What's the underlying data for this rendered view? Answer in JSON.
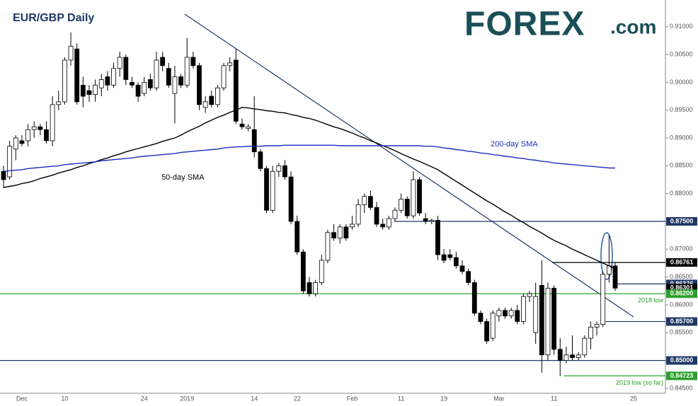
{
  "chart_data": {
    "type": "candlestick",
    "title": "EUR/GBP Daily",
    "logo": {
      "brand": "FOREX",
      "suffix": ".com"
    },
    "categories": [
      null,
      null,
      null,
      "Dec",
      null,
      null,
      null,
      null,
      null,
      null,
      "10",
      null,
      null,
      null,
      null,
      null,
      null,
      null,
      null,
      null,
      null,
      null,
      null,
      "24",
      null,
      null,
      null,
      null,
      null,
      null,
      "2019",
      null,
      null,
      null,
      null,
      null,
      null,
      null,
      null,
      null,
      null,
      "14",
      null,
      null,
      null,
      null,
      null,
      null,
      "22",
      null,
      null,
      null,
      null,
      null,
      null,
      null,
      null,
      "Feb",
      null,
      null,
      null,
      null,
      null,
      null,
      null,
      "11",
      null,
      null,
      null,
      null,
      null,
      null,
      "19",
      null,
      null,
      null,
      null,
      null,
      null,
      null,
      null,
      "Mar",
      null,
      null,
      null,
      null,
      null,
      null,
      null,
      null,
      "11",
      null,
      null,
      null,
      null,
      null,
      null,
      null,
      null,
      null,
      null,
      null,
      null,
      "25"
    ],
    "open": [
      0.884,
      0.883,
      0.888,
      0.8895,
      0.8895,
      0.8915,
      0.892,
      0.8915,
      0.8895,
      0.896,
      0.8965,
      0.904,
      0.906,
      0.8995,
      0.8985,
      0.8978,
      0.899,
      0.901,
      0.8995,
      0.9025,
      0.9045,
      0.9,
      0.8995,
      0.898,
      0.9005,
      0.899,
      0.9045,
      0.9025,
      0.898,
      0.901,
      0.8995,
      0.9045,
      0.903,
      0.8955,
      0.8975,
      0.896,
      0.899,
      0.903,
      0.904,
      0.8925,
      0.8917,
      0.8915,
      0.8875,
      0.8845,
      0.877,
      0.884,
      0.885,
      0.883,
      0.875,
      0.8695,
      0.864,
      0.862,
      0.864,
      0.868,
      0.873,
      0.872,
      0.874,
      0.874,
      0.8745,
      0.878,
      0.8795,
      0.8775,
      0.8745,
      0.874,
      0.8755,
      0.877,
      0.879,
      0.876,
      0.8825,
      0.8755,
      0.875,
      0.8752,
      0.869,
      0.869,
      0.8685,
      0.867,
      0.866,
      0.864,
      0.8585,
      0.857,
      0.854,
      0.858,
      0.859,
      0.858,
      0.859,
      0.857,
      0.8615,
      0.855,
      0.8635,
      0.851,
      0.863,
      0.852,
      0.85,
      0.851,
      0.8505,
      0.851,
      0.854,
      0.856,
      0.8565,
      0.8655,
      0.867,
      null,
      null,
      null
    ],
    "high": [
      0.885,
      0.8895,
      0.8905,
      0.8905,
      0.8925,
      0.893,
      0.8925,
      0.893,
      0.8975,
      0.8985,
      0.9045,
      0.909,
      0.907,
      0.901,
      0.8995,
      0.9005,
      0.9015,
      0.902,
      0.9035,
      0.9055,
      0.905,
      0.901,
      0.9,
      0.901,
      0.9015,
      0.9055,
      0.9055,
      0.9035,
      0.903,
      0.9015,
      0.908,
      0.9055,
      0.9035,
      0.8975,
      0.8985,
      0.8995,
      0.9035,
      0.9045,
      0.906,
      0.8935,
      0.8925,
      0.8975,
      0.888,
      0.885,
      0.885,
      0.8855,
      0.886,
      0.884,
      0.876,
      0.87,
      0.865,
      0.8645,
      0.869,
      0.8735,
      0.8745,
      0.8745,
      0.8745,
      0.876,
      0.879,
      0.88,
      0.8805,
      0.8785,
      0.8755,
      0.876,
      0.8775,
      0.88,
      0.8795,
      0.884,
      0.883,
      0.8765,
      0.8755,
      0.876,
      0.87,
      0.87,
      0.8695,
      0.868,
      0.8665,
      0.8645,
      0.859,
      0.8575,
      0.859,
      0.8595,
      0.8595,
      0.8595,
      0.86,
      0.862,
      0.8625,
      0.864,
      0.868,
      0.864,
      0.8635,
      0.854,
      0.8525,
      0.8545,
      0.8515,
      0.8545,
      0.857,
      0.857,
      0.866,
      0.8725,
      0.8676,
      null,
      null,
      null
    ],
    "low": [
      0.881,
      0.8825,
      0.886,
      0.8885,
      0.8885,
      0.89,
      0.8905,
      0.889,
      0.8885,
      0.895,
      0.896,
      0.903,
      0.896,
      0.8955,
      0.8965,
      0.8965,
      0.8975,
      0.8985,
      0.899,
      0.901,
      0.8995,
      0.899,
      0.8965,
      0.8975,
      0.8985,
      0.8985,
      0.902,
      0.899,
      0.8926,
      0.899,
      0.899,
      0.9025,
      0.895,
      0.8945,
      0.8955,
      0.8955,
      0.8985,
      0.902,
      0.8925,
      0.8915,
      0.8912,
      0.8865,
      0.884,
      0.8765,
      0.8765,
      0.883,
      0.8825,
      0.8745,
      0.869,
      0.862,
      0.8615,
      0.8615,
      0.8635,
      0.8675,
      0.8715,
      0.871,
      0.8715,
      0.8735,
      0.874,
      0.8765,
      0.877,
      0.874,
      0.8735,
      0.8735,
      0.875,
      0.8765,
      0.8755,
      0.8755,
      0.876,
      0.8745,
      0.8745,
      0.868,
      0.8675,
      0.868,
      0.8665,
      0.8655,
      0.8635,
      0.858,
      0.8565,
      0.853,
      0.8535,
      0.857,
      0.8575,
      0.8575,
      0.8565,
      0.8565,
      0.8605,
      0.853,
      0.8478,
      0.85,
      0.851,
      0.8472,
      0.8495,
      0.85,
      0.85,
      0.8505,
      0.852,
      0.8545,
      0.856,
      0.864,
      0.8625,
      null,
      null,
      null
    ],
    "close": [
      0.8825,
      0.8885,
      0.89,
      0.889,
      0.8915,
      0.892,
      0.8915,
      0.8895,
      0.896,
      0.8965,
      0.904,
      0.9065,
      0.8965,
      0.8975,
      0.8978,
      0.8995,
      0.9005,
      0.8995,
      0.9025,
      0.9045,
      0.9005,
      0.8995,
      0.8975,
      0.9,
      0.899,
      0.904,
      0.903,
      0.8995,
      0.901,
      0.8995,
      0.9045,
      0.903,
      0.896,
      0.8965,
      0.896,
      0.899,
      0.903,
      0.9035,
      0.893,
      0.892,
      0.892,
      0.8875,
      0.8845,
      0.877,
      0.884,
      0.885,
      0.883,
      0.875,
      0.8695,
      0.8625,
      0.862,
      0.864,
      0.868,
      0.873,
      0.872,
      0.874,
      0.872,
      0.8745,
      0.878,
      0.8795,
      0.8775,
      0.8745,
      0.874,
      0.8755,
      0.877,
      0.879,
      0.876,
      0.8825,
      0.8765,
      0.875,
      0.8752,
      0.869,
      0.868,
      0.8685,
      0.867,
      0.866,
      0.864,
      0.8585,
      0.857,
      0.8535,
      0.8585,
      0.859,
      0.858,
      0.859,
      0.857,
      0.8615,
      0.862,
      0.8615,
      0.851,
      0.863,
      0.852,
      0.85,
      0.851,
      0.8505,
      0.851,
      0.854,
      0.856,
      0.8565,
      0.8655,
      0.867,
      0.863,
      null,
      null,
      null
    ],
    "series": [
      {
        "name": "50-day SMA",
        "color": "#000000",
        "values": [
          0.8811,
          0.8813,
          0.8815,
          0.8818,
          0.882,
          0.8823,
          0.8827,
          0.883,
          0.8833,
          0.8837,
          0.884,
          0.8843,
          0.8847,
          0.885,
          0.8854,
          0.8857,
          0.8861,
          0.8864,
          0.8868,
          0.8871,
          0.8875,
          0.8878,
          0.8881,
          0.8884,
          0.8887,
          0.889,
          0.8894,
          0.8897,
          0.89,
          0.8905,
          0.8911,
          0.8916,
          0.8921,
          0.8927,
          0.8932,
          0.8937,
          0.8941,
          0.8946,
          0.895,
          0.8955,
          0.8954,
          0.8952,
          0.8951,
          0.8949,
          0.8948,
          0.8946,
          0.8945,
          0.8942,
          0.894,
          0.8937,
          0.8935,
          0.8932,
          0.8928,
          0.8924,
          0.892,
          0.8917,
          0.8913,
          0.8909,
          0.8904,
          0.89,
          0.8895,
          0.8891,
          0.8886,
          0.8882,
          0.8877,
          0.8872,
          0.8867,
          0.8862,
          0.8858,
          0.8853,
          0.8848,
          0.8843,
          0.8836,
          0.8829,
          0.8822,
          0.8815,
          0.8808,
          0.8801,
          0.8794,
          0.8787,
          0.8781,
          0.8774,
          0.8767,
          0.8761,
          0.8754,
          0.8748,
          0.8741,
          0.8735,
          0.8729,
          0.8722,
          0.8716,
          0.8711,
          0.8706,
          0.87,
          0.8695,
          0.869,
          0.8685,
          0.868,
          0.8675,
          0.867,
          0.8665,
          null,
          null,
          null
        ]
      },
      {
        "name": "200-day SMA",
        "color": "#1f2dbf",
        "values": [
          0.884,
          0.8841,
          0.8842,
          0.8843,
          0.8845,
          0.8846,
          0.8847,
          0.8848,
          0.8849,
          0.885,
          0.8852,
          0.8853,
          0.8854,
          0.8855,
          0.8856,
          0.8857,
          0.8859,
          0.886,
          0.8861,
          0.8862,
          0.8863,
          0.8864,
          0.8866,
          0.8867,
          0.8868,
          0.8869,
          0.887,
          0.8871,
          0.8872,
          0.8874,
          0.8875,
          0.8876,
          0.8877,
          0.8878,
          0.8879,
          0.888,
          0.8882,
          0.8883,
          0.8884,
          0.8884,
          0.8885,
          0.8885,
          0.8885,
          0.8886,
          0.8886,
          0.8886,
          0.8887,
          0.8887,
          0.8887,
          0.8887,
          0.8887,
          0.8887,
          0.8887,
          0.8887,
          0.8887,
          0.8886,
          0.8886,
          0.8886,
          0.8886,
          0.8886,
          0.8886,
          0.8886,
          0.8886,
          0.8886,
          0.8886,
          0.8886,
          0.8886,
          0.8886,
          0.8886,
          0.8885,
          0.8885,
          0.8884,
          0.8882,
          0.8881,
          0.8879,
          0.8878,
          0.8876,
          0.8875,
          0.8873,
          0.8872,
          0.887,
          0.8869,
          0.8867,
          0.8866,
          0.8864,
          0.8863,
          0.8861,
          0.886,
          0.8858,
          0.8857,
          0.8855,
          0.8854,
          0.8853,
          0.8852,
          0.8851,
          0.885,
          0.8849,
          0.8848,
          0.8847,
          0.8846,
          0.8846,
          null,
          null,
          null
        ]
      }
    ],
    "levels": [
      {
        "value": 0.875,
        "label": "0.87500",
        "color": "#1f3864"
      },
      {
        "value": 0.86761,
        "label": "0.86761",
        "color": "#000000"
      },
      {
        "value": 0.86376,
        "label": "0.86376",
        "color": "#1f3864"
      },
      {
        "value": 0.86301,
        "label": "0.86301",
        "color": "#000000"
      },
      {
        "value": 0.862,
        "label": "0.86200",
        "color": "#2ca02c",
        "note": "2018 low"
      },
      {
        "value": 0.857,
        "label": "0.85700",
        "color": "#1f3864"
      },
      {
        "value": 0.85,
        "label": "0.85000",
        "color": "#1f3864"
      },
      {
        "value": 0.84723,
        "label": "0.84723",
        "color": "#2ca02c",
        "note": "2019 low (so far)"
      }
    ],
    "up_color": "#ffffff",
    "down_color": "#000000",
    "ylim": [
      0.8441,
      0.9148
    ],
    "yticks": [
      {
        "value": 0.845,
        "label": "0.84500"
      },
      {
        "value": 0.85,
        "label": "0.85000"
      },
      {
        "value": 0.855,
        "label": "0.85500"
      },
      {
        "value": 0.86,
        "label": "0.86000"
      },
      {
        "value": 0.865,
        "label": "0.86500"
      },
      {
        "value": 0.87,
        "label": "0.87000"
      },
      {
        "value": 0.875,
        "label": "0.87500"
      },
      {
        "value": 0.88,
        "label": "0.88000"
      },
      {
        "value": 0.885,
        "label": "0.88500"
      },
      {
        "value": 0.89,
        "label": "0.89000"
      },
      {
        "value": 0.895,
        "label": "0.89500"
      },
      {
        "value": 0.9,
        "label": "0.90000"
      },
      {
        "value": 0.905,
        "label": "0.90500"
      },
      {
        "value": 0.91,
        "label": "0.91000"
      }
    ],
    "grid": false
  }
}
